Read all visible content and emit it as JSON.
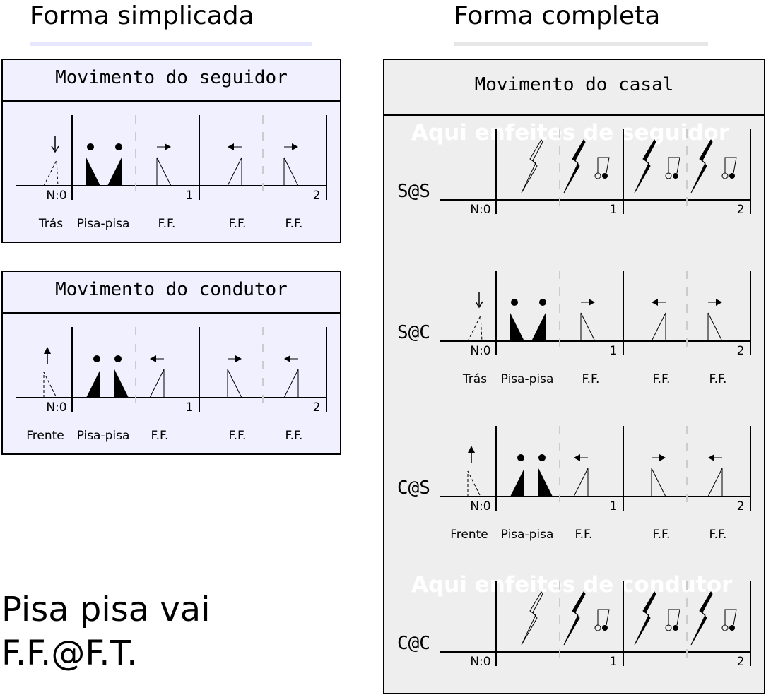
{
  "headings": {
    "simplified": "Forma simplicada",
    "complete": "Forma completa"
  },
  "colors": {
    "simplified_panel_bg": "#f0f0ff",
    "complete_panel_bg": "#eeeeee",
    "simplified_underline": "#e6e6ff",
    "complete_underline": "#e6e6e6",
    "dashed_divider": "#cccccc",
    "overlay_text": "#ffffff"
  },
  "panels": {
    "follower": {
      "title": "Movimento do seguidor",
      "axis_labels": [
        "N:0",
        "1",
        "2"
      ],
      "step_labels": [
        "Trás",
        "Pisa-pisa",
        "F.F.",
        "F.F.",
        "F.F."
      ]
    },
    "leader": {
      "title": "Movimento do condutor",
      "axis_labels": [
        "N:0",
        "1",
        "2"
      ],
      "step_labels": [
        "Frente",
        "Pisa-pisa",
        "F.F.",
        "F.F.",
        "F.F."
      ]
    },
    "couple": {
      "title": "Movimento do casal",
      "rows": [
        {
          "label": "S@S",
          "overlay": "Aqui enfeites de seguidor",
          "axis_labels": [
            "N:0",
            "1",
            "2"
          ]
        },
        {
          "label": "S@C",
          "axis_labels": [
            "N:0",
            "1",
            "2"
          ],
          "step_labels": [
            "Trás",
            "Pisa-pisa",
            "F.F.",
            "F.F.",
            "F.F."
          ]
        },
        {
          "label": "C@S",
          "axis_labels": [
            "N:0",
            "1",
            "2"
          ],
          "step_labels": [
            "Frente",
            "Pisa-pisa",
            "F.F.",
            "F.F.",
            "F.F."
          ]
        },
        {
          "label": "C@C",
          "overlay": "Aqui enfeites de condutor",
          "axis_labels": [
            "N:0",
            "1",
            "2"
          ]
        }
      ]
    }
  },
  "note": {
    "line1": "Pisa pisa vai",
    "line2": "F.F.@F.T."
  }
}
